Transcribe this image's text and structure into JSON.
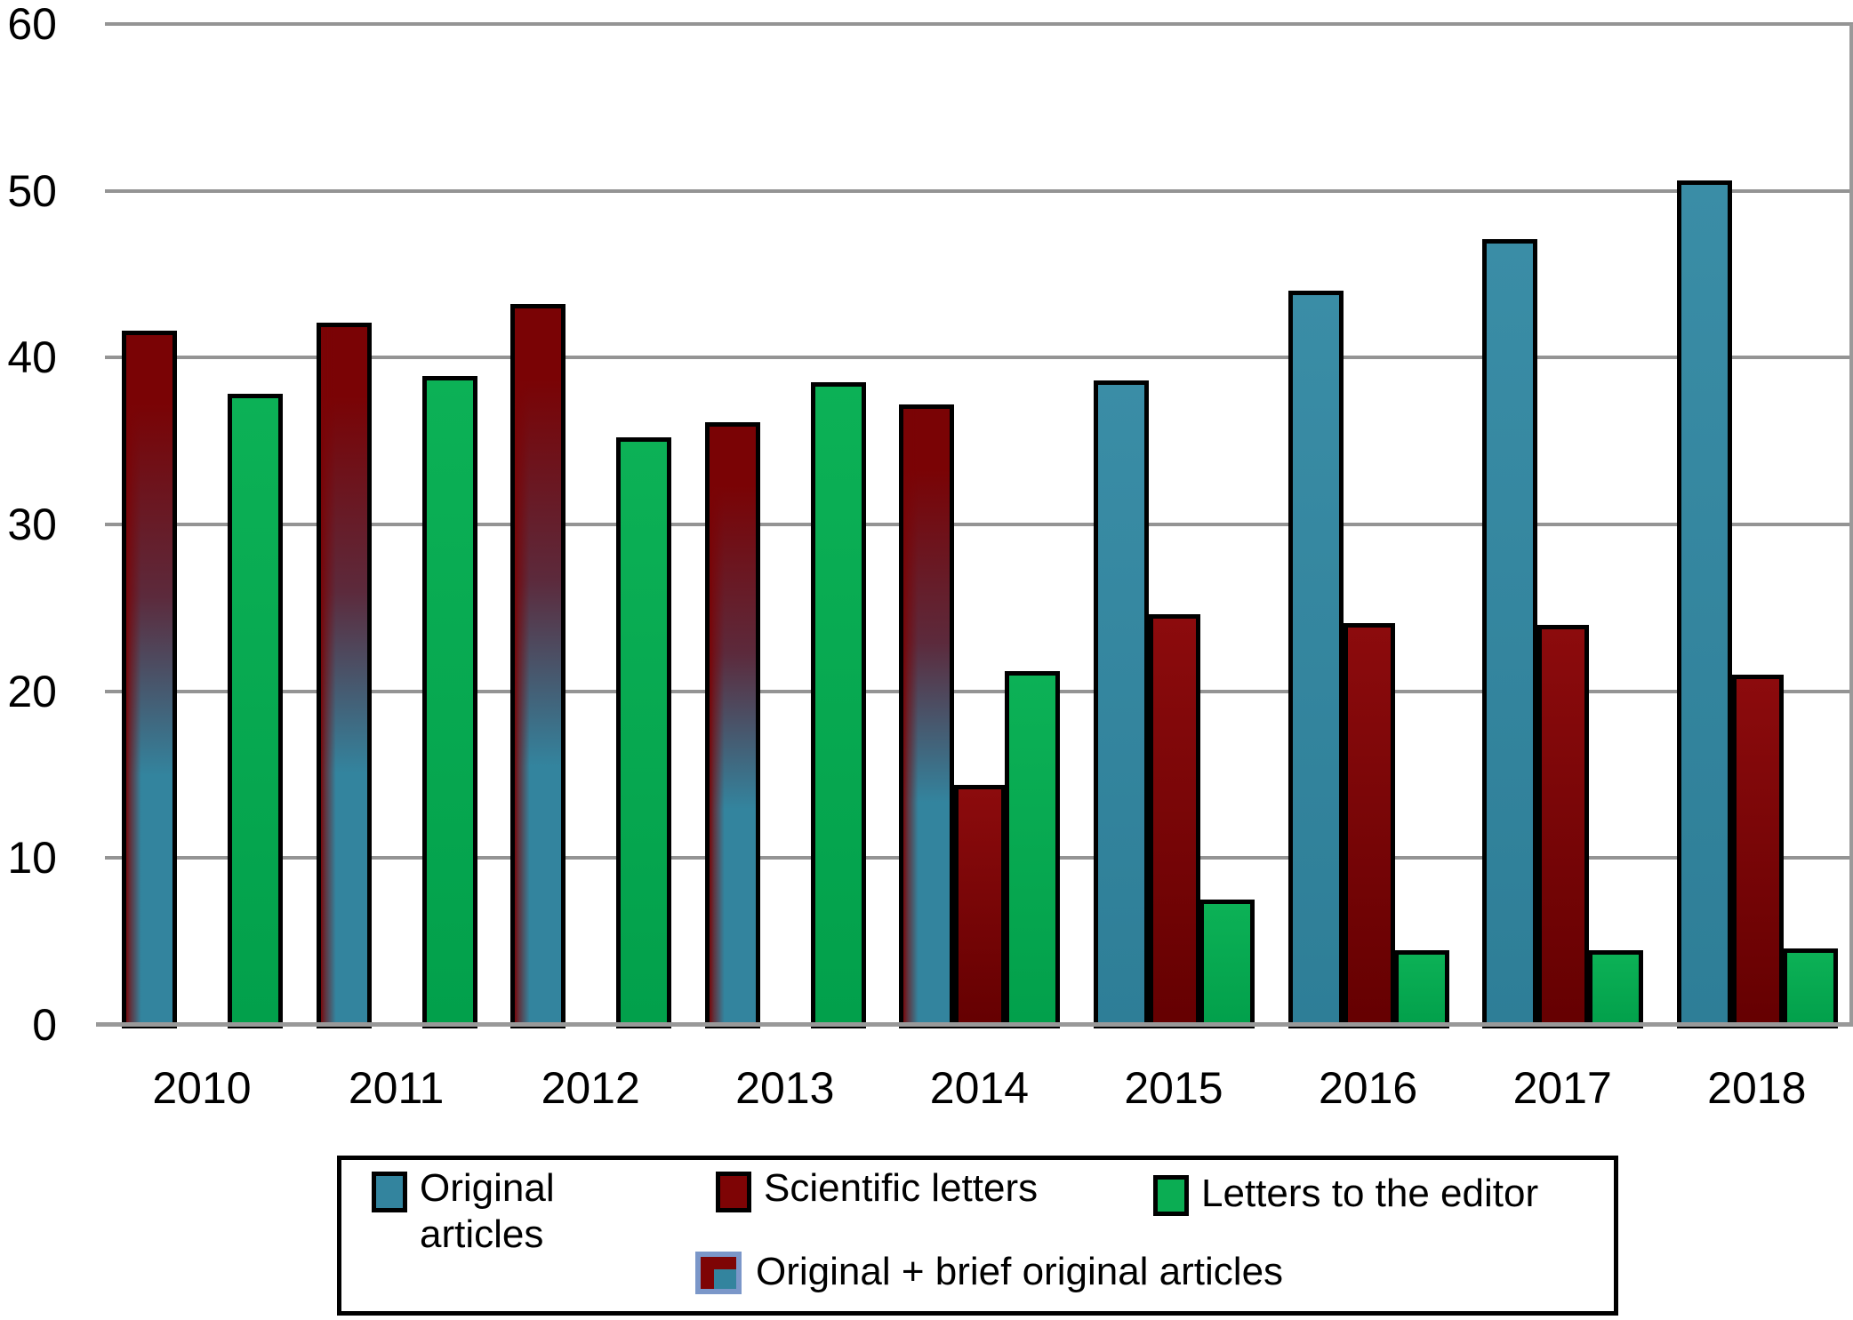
{
  "chart_data": {
    "type": "bar",
    "title": "",
    "xlabel": "",
    "ylabel": "",
    "ylim": [
      0,
      60
    ],
    "yticks": [
      "0",
      "10",
      "20",
      "30",
      "40",
      "50",
      "60"
    ],
    "grid": "horizontal",
    "legend_position": "bottom-box",
    "categories": [
      "2010",
      "2011",
      "2012",
      "2013",
      "2014",
      "2015",
      "2016",
      "2017",
      "2018"
    ],
    "series": [
      {
        "name": "Original articles",
        "key": "original-articles",
        "color_top": "#3A8DA6",
        "color_bottom": "#2E7E97",
        "values": [
          null,
          null,
          null,
          null,
          null,
          38.6,
          44,
          47.1,
          50.6
        ]
      },
      {
        "name": "Scientific letters",
        "key": "scientific-letters",
        "color_top": "#8C0B0D",
        "color_bottom": "#650001",
        "values": [
          null,
          null,
          null,
          null,
          14.4,
          24.6,
          24.1,
          24,
          21
        ]
      },
      {
        "name": "Letters to the editor",
        "key": "letters-to-editor",
        "color_top": "#0CB156",
        "color_bottom": "#02A04B",
        "values": [
          37.8,
          38.9,
          35.2,
          38.5,
          21.2,
          7.5,
          4.5,
          4.5,
          4.6
        ]
      },
      {
        "name": "Original + brief original articles",
        "key": "original-plus-brief",
        "color_top": "#7A0305",
        "color_mid": "#5C2A3C",
        "color_bottom": "#33849E",
        "values": [
          41.6,
          42.1,
          43.2,
          36.1,
          37.2,
          null,
          null,
          null,
          null
        ]
      }
    ],
    "accent_colors": {
      "teal": "#33849E",
      "dark_red": "#7E0405",
      "green": "#0BAD53",
      "gridline_gray": "#949494",
      "swatch_frame_blue": "#7B97C9"
    }
  }
}
